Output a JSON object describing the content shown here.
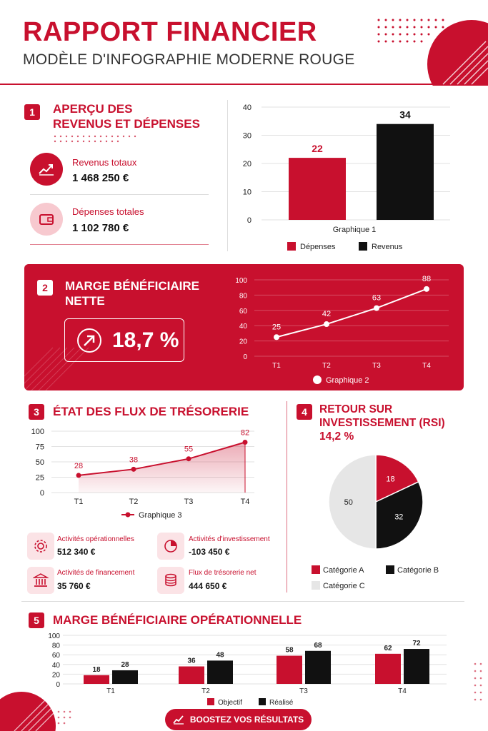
{
  "header": {
    "title": "RAPPORT FINANCIER",
    "subtitle": "MODÈLE D'INFOGRAPHIE MODERNE ROUGE"
  },
  "colors": {
    "accent": "#c8102e",
    "dark": "#111111",
    "light": "#e6e6e6",
    "pink": "#fbe3e6"
  },
  "section1": {
    "number": "1",
    "title_line1": "APERÇU DES",
    "title_line2": "REVENUS ET DÉPENSES",
    "revenue_label": "Revenus totaux",
    "revenue_value": "1 468 250 €",
    "revenue_icon": "trend-up-icon",
    "expenses_label": "Dépenses totales",
    "expenses_value": "1 102 780 €",
    "expenses_icon": "wallet-icon"
  },
  "section2": {
    "number": "2",
    "title_line1": "MARGE BÉNÉFICIAIRE",
    "title_line2": "NETTE",
    "kpi_value": "18,7 %",
    "kpi_icon": "arrow-up-right-icon"
  },
  "section3": {
    "number": "3",
    "title": "ÉTAT DES FLUX DE TRÉSORERIE",
    "items": [
      {
        "label": "Activités opérationnelles",
        "value": "512 340 €",
        "icon": "gear-icon"
      },
      {
        "label": "Activités d'investissement",
        "value": "-103 450 €",
        "icon": "pie-icon"
      },
      {
        "label": "Activités de financement",
        "value": "35 760 €",
        "icon": "bank-icon"
      },
      {
        "label": "Flux de trésorerie net",
        "value": "444 650 €",
        "icon": "coins-icon"
      }
    ]
  },
  "section4": {
    "number": "4",
    "title_line1": "RETOUR SUR",
    "title_line2": "INVESTISSEMENT (RSI)",
    "value": "14,2 %"
  },
  "section5": {
    "number": "5",
    "title": "MARGE BÉNÉFICIAIRE OPÉRATIONNELLE"
  },
  "cta": {
    "label": "BOOSTEZ VOS RÉSULTATS",
    "icon": "chart-up-icon"
  },
  "chart_data": [
    {
      "type": "bar",
      "title": "",
      "xlabel": "Graphique 1",
      "categories": [
        "Dépenses",
        "Revenus"
      ],
      "series": [
        {
          "name": "",
          "values": [
            22,
            34
          ]
        }
      ],
      "legend": [
        "Dépenses",
        "Revenus"
      ],
      "ylim": [
        0,
        40
      ],
      "yticks": [
        0,
        10,
        20,
        30,
        40
      ],
      "grid": true,
      "legend_position": "bottom"
    },
    {
      "type": "line",
      "title": "",
      "categories": [
        "T1",
        "T2",
        "T3",
        "T4"
      ],
      "series": [
        {
          "name": "Graphique 2",
          "values": [
            25,
            42,
            63,
            88
          ]
        }
      ],
      "ylim": [
        0,
        100
      ],
      "yticks": [
        0,
        20,
        40,
        60,
        80,
        100
      ],
      "grid": true,
      "legend_position": "bottom"
    },
    {
      "type": "area",
      "title": "",
      "categories": [
        "T1",
        "T2",
        "T3",
        "T4"
      ],
      "series": [
        {
          "name": "Graphique 3",
          "values": [
            28,
            38,
            55,
            82
          ]
        }
      ],
      "ylim": [
        0,
        100
      ],
      "yticks": [
        0,
        25,
        50,
        75,
        100
      ],
      "grid": true,
      "legend_position": "bottom"
    },
    {
      "type": "pie",
      "title": "",
      "categories": [
        "Catégorie A",
        "Catégorie B",
        "Catégorie C"
      ],
      "values": [
        18,
        32,
        50
      ],
      "legend_position": "bottom"
    },
    {
      "type": "bar",
      "title": "",
      "categories": [
        "T1",
        "T2",
        "T3",
        "T4"
      ],
      "series": [
        {
          "name": "Objectif",
          "values": [
            18,
            36,
            58,
            62
          ]
        },
        {
          "name": "Réalisé",
          "values": [
            28,
            48,
            68,
            72
          ]
        }
      ],
      "ylim": [
        0,
        100
      ],
      "yticks": [
        0,
        20,
        40,
        60,
        80,
        100
      ],
      "grid": true,
      "legend_position": "bottom"
    }
  ]
}
